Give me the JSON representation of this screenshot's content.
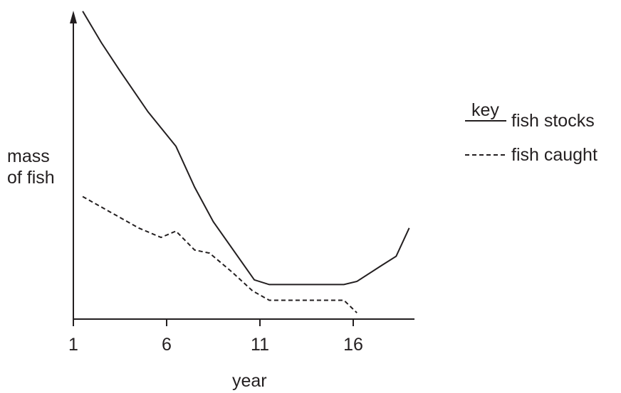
{
  "chart_data": {
    "type": "line",
    "xlabel": "year",
    "ylabel": [
      "mass",
      "of fish"
    ],
    "xlim": [
      1,
      19
    ],
    "ylim": [
      0,
      100
    ],
    "xticks": [
      1,
      6,
      11,
      16
    ],
    "grid": false,
    "legend_title": "key",
    "legend_position": "right",
    "series": [
      {
        "name": "fish stocks",
        "style": "solid",
        "color": "#231f20",
        "points": [
          [
            1.5,
            98
          ],
          [
            2.5,
            88
          ],
          [
            3.5,
            79
          ],
          [
            5,
            66
          ],
          [
            6.5,
            55
          ],
          [
            7.5,
            42
          ],
          [
            8.5,
            31
          ],
          [
            10.7,
            12.5
          ],
          [
            11.5,
            11
          ],
          [
            13.5,
            11
          ],
          [
            15.5,
            11
          ],
          [
            16.2,
            12
          ],
          [
            17.5,
            17
          ],
          [
            18.3,
            20
          ],
          [
            19,
            29
          ]
        ]
      },
      {
        "name": "fish caught",
        "style": "dashed",
        "color": "#231f20",
        "points": [
          [
            1.5,
            39
          ],
          [
            3,
            34
          ],
          [
            4.5,
            29
          ],
          [
            5.7,
            26
          ],
          [
            6.5,
            28
          ],
          [
            7.5,
            22
          ],
          [
            8.3,
            21
          ],
          [
            9.5,
            15
          ],
          [
            10.6,
            9
          ],
          [
            11.5,
            6
          ],
          [
            13.5,
            6
          ],
          [
            15.5,
            6
          ],
          [
            16.2,
            2
          ]
        ]
      }
    ]
  }
}
